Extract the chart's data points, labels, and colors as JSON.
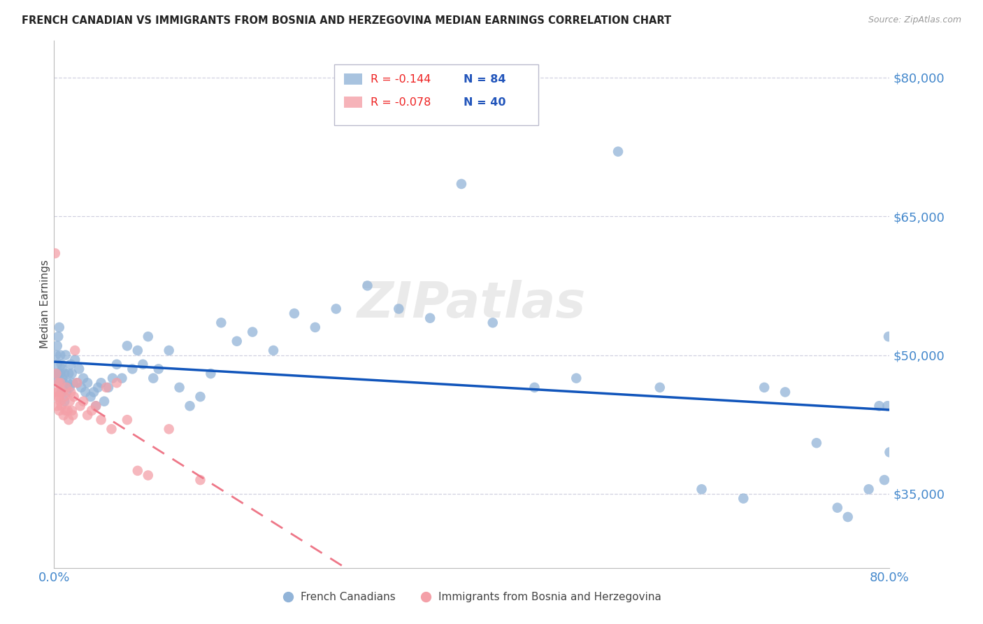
{
  "title": "FRENCH CANADIAN VS IMMIGRANTS FROM BOSNIA AND HERZEGOVINA MEDIAN EARNINGS CORRELATION CHART",
  "source": "Source: ZipAtlas.com",
  "ylabel": "Median Earnings",
  "watermark": "ZIPatlas",
  "xlim": [
    0.0,
    0.8
  ],
  "ylim": [
    27000,
    84000
  ],
  "yticks": [
    35000,
    50000,
    65000,
    80000
  ],
  "ytick_labels": [
    "$35,000",
    "$50,000",
    "$65,000",
    "$80,000"
  ],
  "legend_r1": "R = -0.144",
  "legend_n1": "N = 84",
  "legend_r2": "R = -0.078",
  "legend_n2": "N = 40",
  "blue_color": "#92B4D8",
  "pink_color": "#F4A0A8",
  "line_blue": "#1155BB",
  "line_pink": "#EE7788",
  "axis_color": "#4488CC",
  "grid_color": "#CCCCDD",
  "title_color": "#222222",
  "blue_x": [
    0.001,
    0.002,
    0.002,
    0.003,
    0.003,
    0.004,
    0.004,
    0.005,
    0.005,
    0.006,
    0.006,
    0.007,
    0.007,
    0.008,
    0.008,
    0.009,
    0.01,
    0.01,
    0.011,
    0.012,
    0.013,
    0.014,
    0.015,
    0.016,
    0.017,
    0.018,
    0.02,
    0.022,
    0.024,
    0.026,
    0.028,
    0.03,
    0.032,
    0.035,
    0.038,
    0.04,
    0.042,
    0.045,
    0.048,
    0.052,
    0.056,
    0.06,
    0.065,
    0.07,
    0.075,
    0.08,
    0.085,
    0.09,
    0.095,
    0.1,
    0.11,
    0.12,
    0.13,
    0.14,
    0.15,
    0.16,
    0.175,
    0.19,
    0.21,
    0.23,
    0.25,
    0.27,
    0.3,
    0.33,
    0.36,
    0.39,
    0.42,
    0.46,
    0.5,
    0.54,
    0.58,
    0.62,
    0.66,
    0.7,
    0.73,
    0.76,
    0.78,
    0.79,
    0.795,
    0.798,
    0.799,
    0.8,
    0.75,
    0.68
  ],
  "blue_y": [
    48000,
    47500,
    50000,
    49000,
    51000,
    48000,
    52000,
    47000,
    53000,
    48000,
    50000,
    46000,
    49000,
    47500,
    48500,
    47000,
    48000,
    45000,
    50000,
    46000,
    47000,
    48000,
    46500,
    49000,
    48000,
    47000,
    49500,
    47000,
    48500,
    46500,
    47500,
    46000,
    47000,
    45500,
    46000,
    44500,
    46500,
    47000,
    45000,
    46500,
    47500,
    49000,
    47500,
    51000,
    48500,
    50500,
    49000,
    52000,
    47500,
    48500,
    50500,
    46500,
    44500,
    45500,
    48000,
    53500,
    51500,
    52500,
    50500,
    54500,
    53000,
    55000,
    57500,
    55000,
    54000,
    68500,
    53500,
    46500,
    47500,
    72000,
    46500,
    35500,
    34500,
    46000,
    40500,
    32500,
    35500,
    44500,
    36500,
    44500,
    52000,
    39500,
    33500,
    46500
  ],
  "pink_x": [
    0.001,
    0.002,
    0.002,
    0.003,
    0.003,
    0.004,
    0.004,
    0.005,
    0.005,
    0.006,
    0.006,
    0.007,
    0.008,
    0.009,
    0.01,
    0.011,
    0.012,
    0.013,
    0.014,
    0.015,
    0.016,
    0.017,
    0.018,
    0.019,
    0.02,
    0.022,
    0.025,
    0.028,
    0.032,
    0.036,
    0.04,
    0.045,
    0.05,
    0.055,
    0.06,
    0.07,
    0.08,
    0.09,
    0.11,
    0.14
  ],
  "pink_y": [
    61000,
    46000,
    48000,
    44500,
    45500,
    47000,
    46000,
    44000,
    45500,
    47000,
    45000,
    44500,
    46000,
    43500,
    45500,
    44000,
    46500,
    44000,
    43000,
    45000,
    46000,
    44000,
    43500,
    45500,
    50500,
    47000,
    44500,
    45000,
    43500,
    44000,
    44500,
    43000,
    46500,
    42000,
    47000,
    43000,
    37500,
    37000,
    42000,
    36500
  ]
}
